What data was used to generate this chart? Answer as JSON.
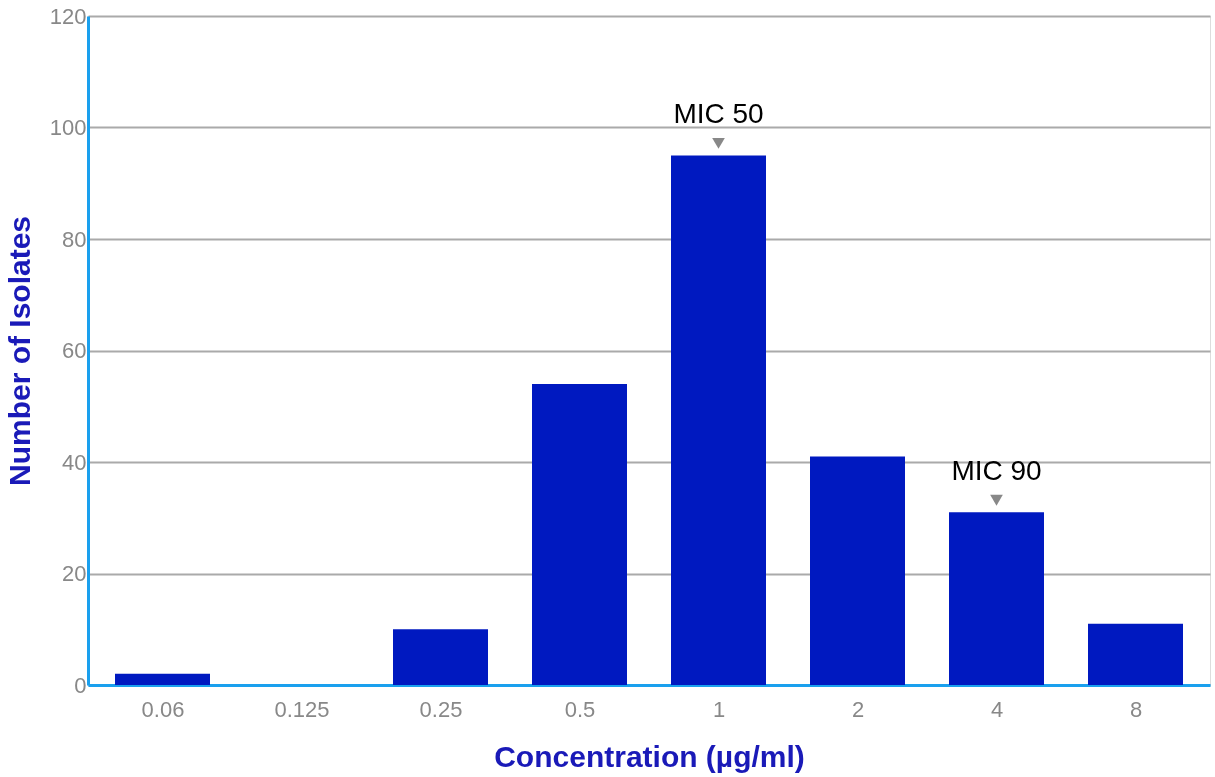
{
  "chart_data": {
    "type": "bar",
    "xlabel": "Concentration (µg/ml)",
    "ylabel": "Number of Isolates",
    "categories": [
      "0.06",
      "0.125",
      "0.25",
      "0.5",
      "1",
      "2",
      "4",
      "8"
    ],
    "values": [
      2,
      0,
      10,
      54,
      95,
      41,
      31,
      11
    ],
    "color": "#0019c0",
    "ylim": [
      0,
      120
    ],
    "yticks": [
      0,
      20,
      40,
      60,
      80,
      100,
      120
    ],
    "grid": "y",
    "annotations": [
      {
        "text": "MIC 50",
        "x": "1",
        "y": 95
      },
      {
        "text": "MIC 90",
        "x": "4",
        "y": 31
      }
    ]
  }
}
